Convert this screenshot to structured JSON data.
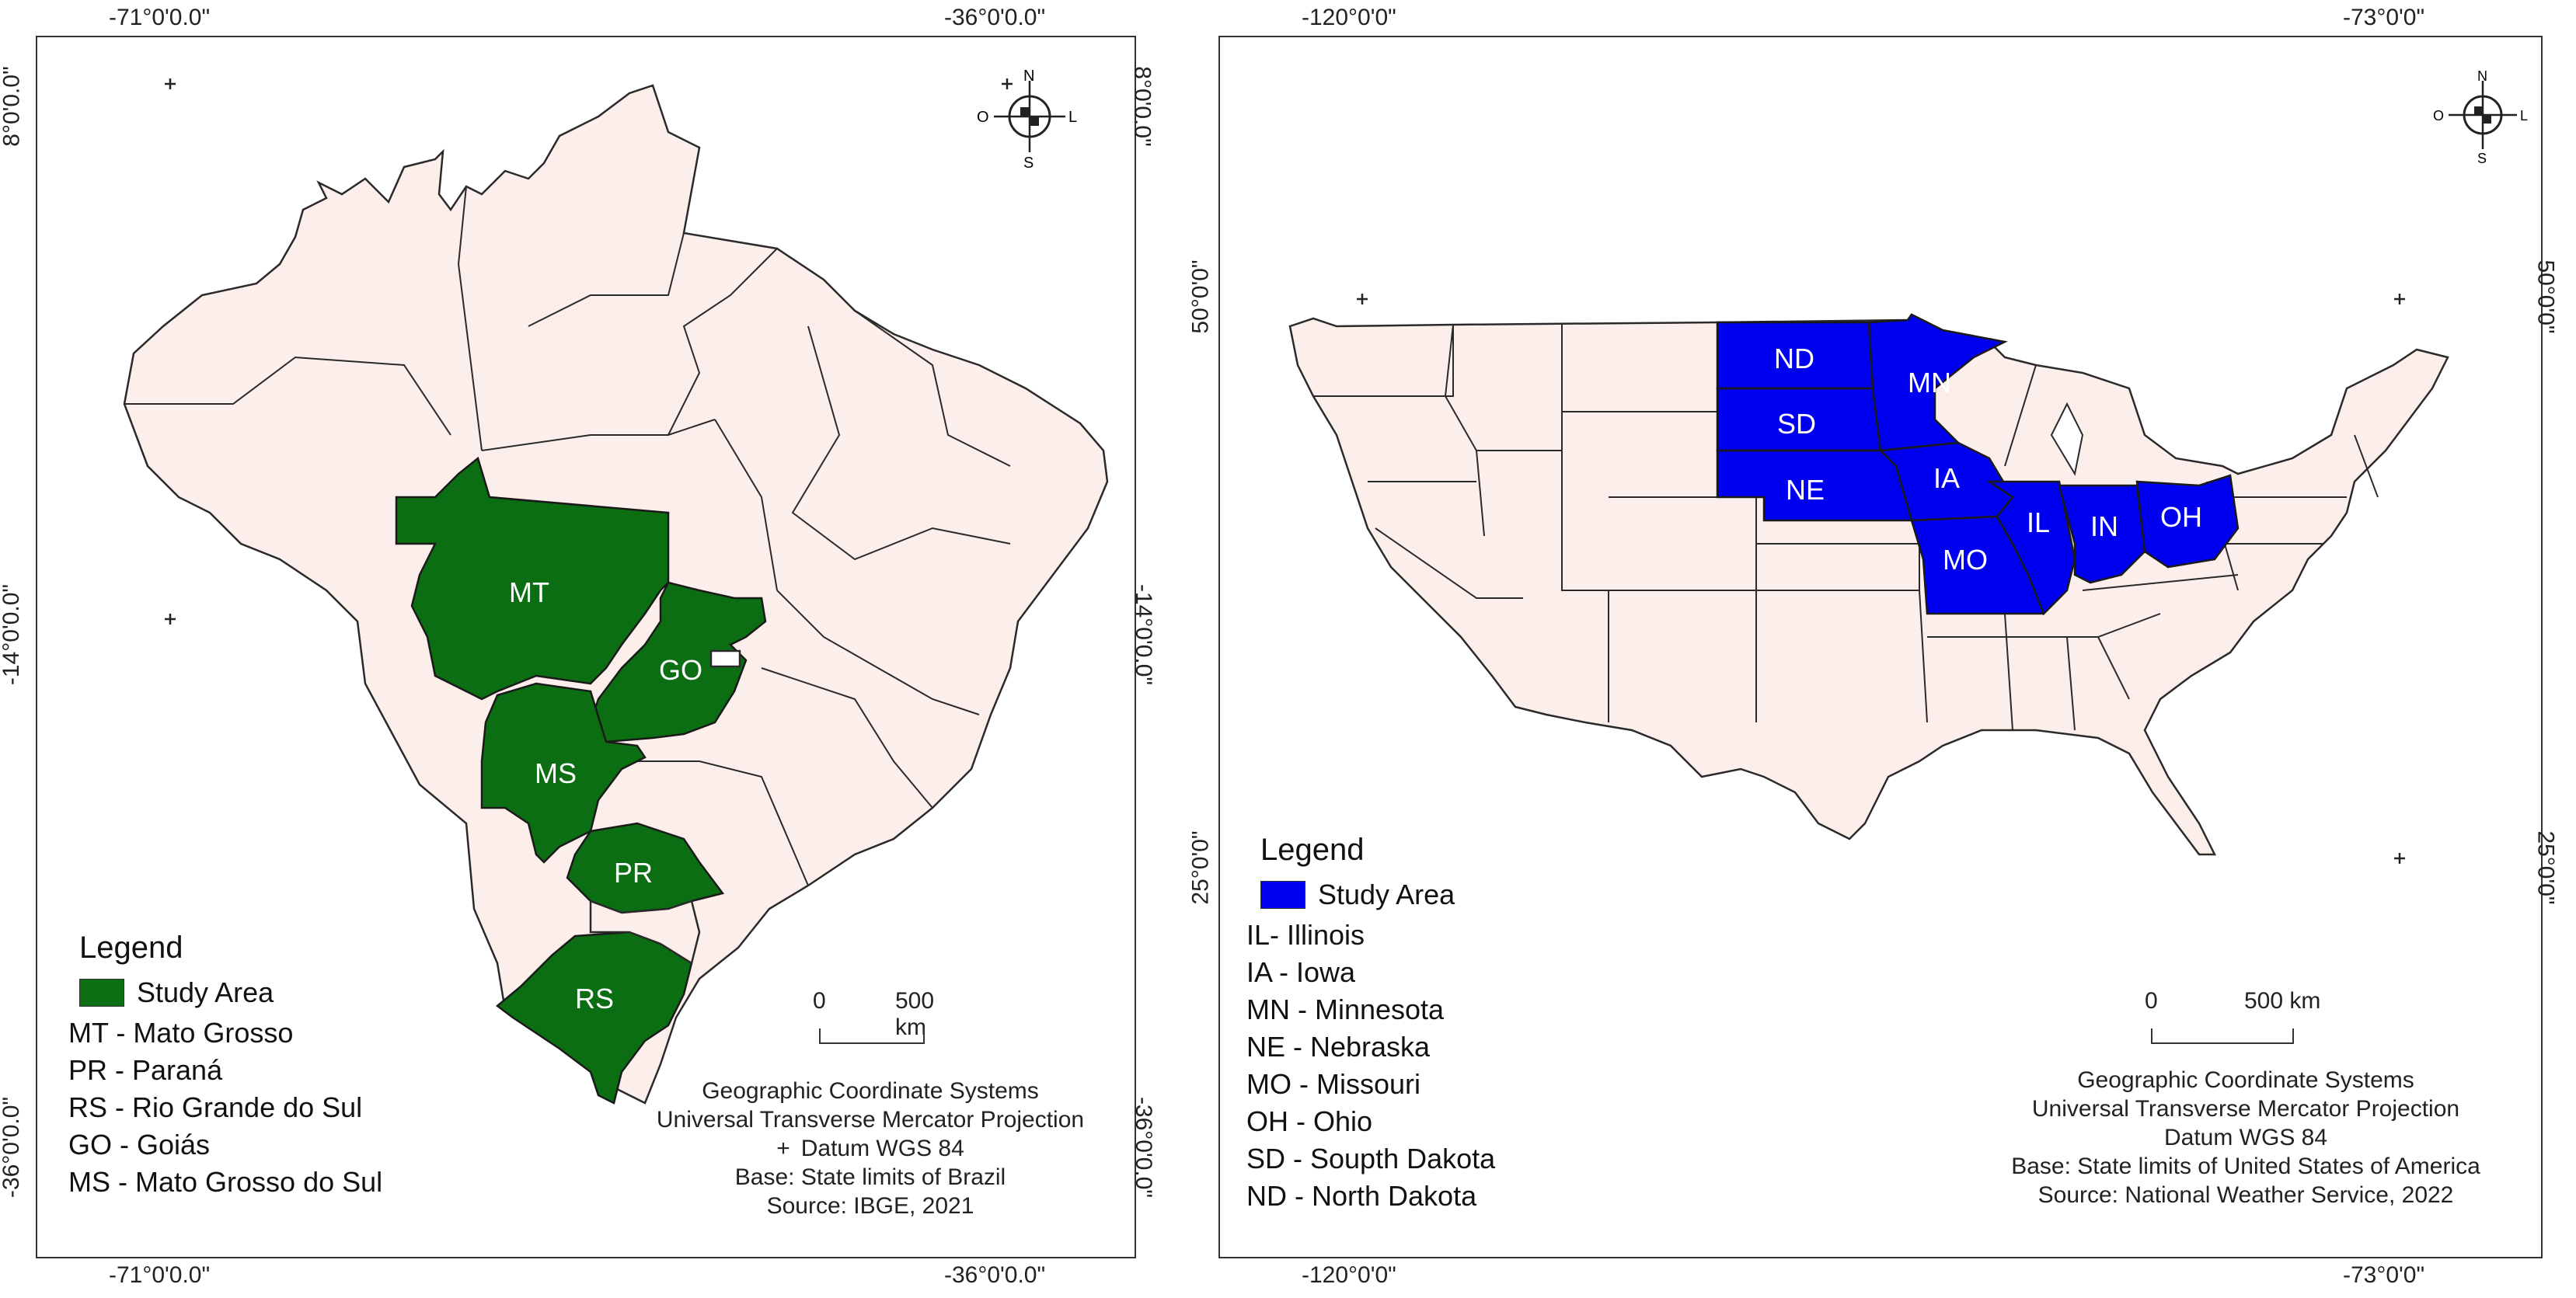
{
  "brazil": {
    "top_lon_left": "-71°0'0.0\"",
    "top_lon_right": "-36°0'0.0\"",
    "bottom_lon_left": "-71°0'0.0\"",
    "bottom_lon_right": "-36°0'0.0\"",
    "lat_top": "8°0'0.0\"",
    "lat_mid": "-14°0'0.0\"",
    "lat_bottom": "-36°0'0.0\"",
    "compass": {
      "n": "N",
      "s": "S",
      "e": "L",
      "w": "O"
    },
    "states": {
      "mt": "MT",
      "go": "GO",
      "ms": "MS",
      "pr": "PR",
      "rs": "RS"
    },
    "legend": {
      "title": "Legend",
      "study_area": "Study Area",
      "study_color": "#0b6e12",
      "items": [
        "MT - Mato Grosso",
        "PR - Paraná",
        "RS - Rio Grande do Sul",
        "GO - Goiás",
        "MS - Mato Grosso do Sul"
      ]
    },
    "scale": {
      "zero": "0",
      "label": "500 km"
    },
    "credits": [
      "Geographic Coordinate Systems",
      "Universal Transverse Mercator Projection",
      "Datum WGS 84",
      "Base: State limits of Brazil",
      "Source: IBGE, 2021"
    ]
  },
  "usa": {
    "top_lon_left": "-120°0'0\"",
    "top_lon_right": "-73°0'0\"",
    "bottom_lon_left": "-120°0'0\"",
    "bottom_lon_right": "-73°0'0\"",
    "lat_upper": "50°0'0\"",
    "lat_lower": "25°0'0\"",
    "compass": {
      "n": "N",
      "s": "S",
      "e": "L",
      "w": "O"
    },
    "states": {
      "nd": "ND",
      "sd": "SD",
      "ne": "NE",
      "mn": "MN",
      "ia": "IA",
      "mo": "MO",
      "il": "IL",
      "in": "IN",
      "oh": "OH"
    },
    "legend": {
      "title": "Legend",
      "study_area": "Study Area",
      "study_color": "#0000f0",
      "items": [
        "IL- Illinois",
        "IA - Iowa",
        "MN - Minnesota",
        "NE - Nebraska",
        "MO - Missouri",
        "OH - Ohio",
        "SD - Soupth Dakota",
        "ND - North Dakota"
      ]
    },
    "scale": {
      "zero": "0",
      "label": "500 km"
    },
    "credits": [
      "Geographic Coordinate Systems",
      "Universal Transverse Mercator Projection",
      "Datum WGS 84",
      "Base: State limits of United States of America",
      "Source: National Weather Service, 2022"
    ]
  }
}
